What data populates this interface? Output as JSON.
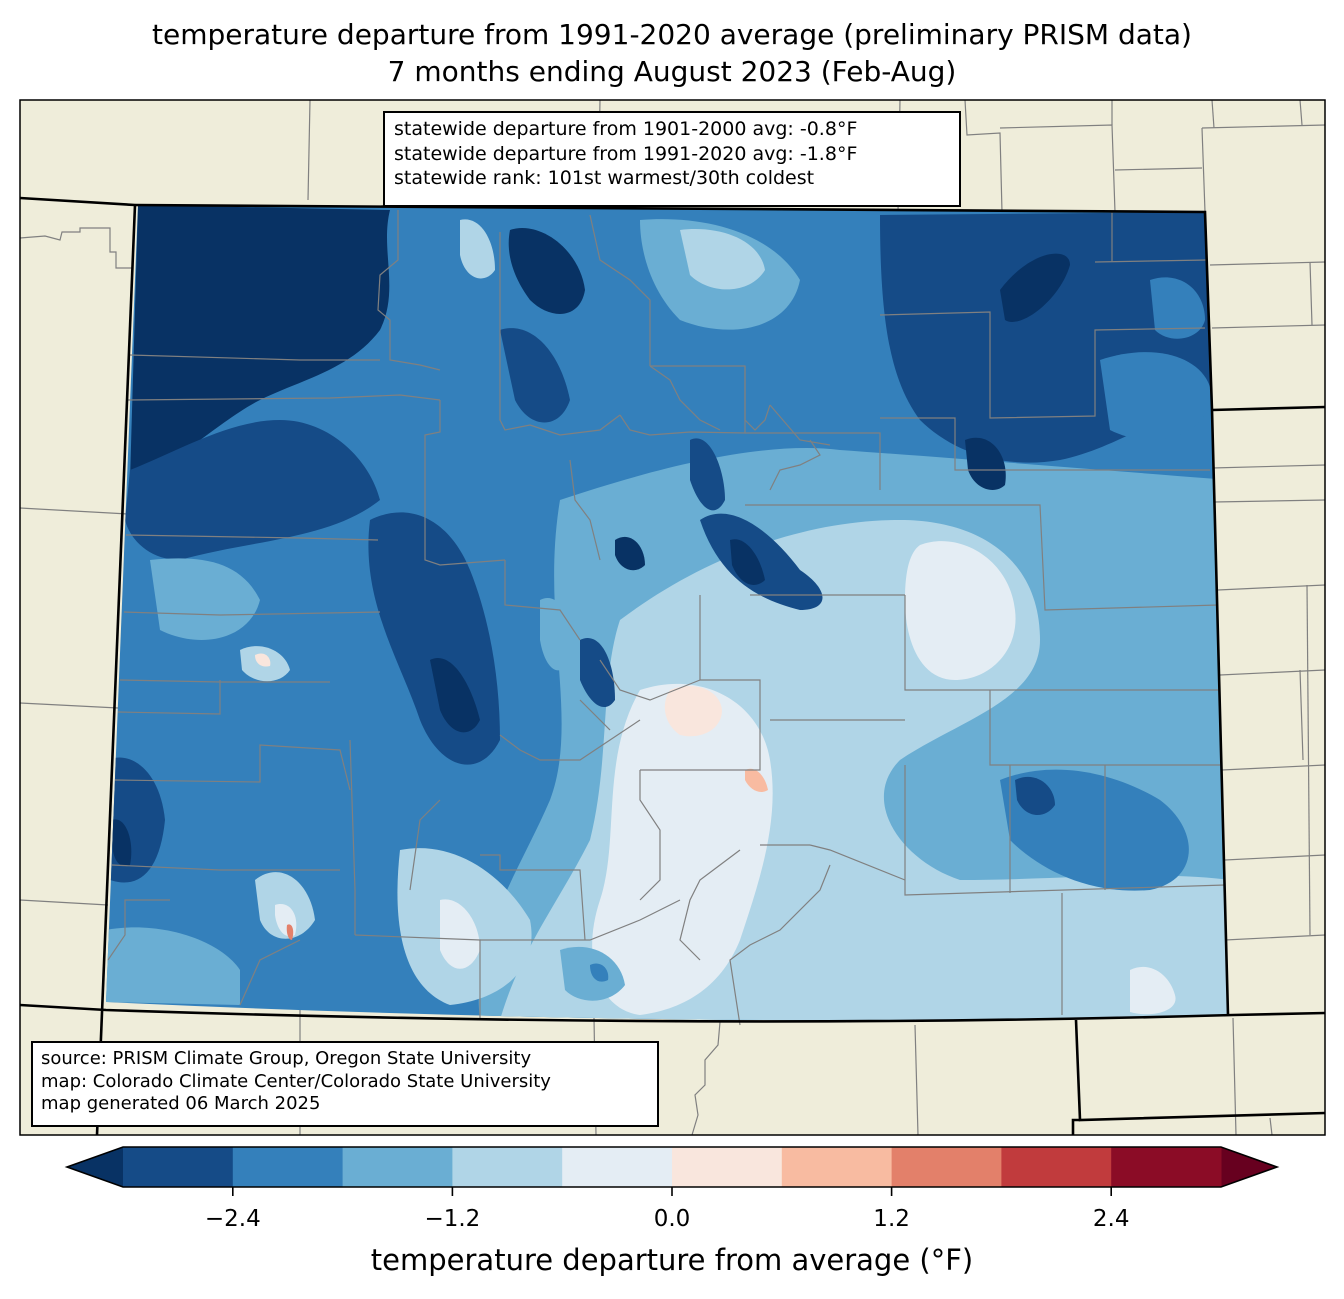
{
  "title": {
    "line1": "temperature departure from 1991-2020 average (preliminary PRISM data)",
    "line2": "7 months ending August 2023 (Feb-Aug)"
  },
  "stats": {
    "line1": "statewide departure from 1901-2000 avg: -0.8°F",
    "line2": "statewide departure from 1991-2020 avg: -1.8°F",
    "line3": "statewide rank: 101st warmest/30th coldest"
  },
  "credits": {
    "line1": "source: PRISM Climate Group, Oregon State University",
    "line2": "map: Colorado Climate Center/Colorado State University",
    "line3": "map generated 06 March 2025"
  },
  "colors": {
    "background_land": "#efedda",
    "county_line": "#808080",
    "state_line": "#000000"
  },
  "chart_data": {
    "type": "heatmap",
    "title": "temperature departure from 1991-2020 average (preliminary PRISM data) — 7 months ending August 2023 (Feb-Aug)",
    "region": "Colorado",
    "colorbar": {
      "label": "temperature departure from average (°F)",
      "extend": "both",
      "levels": [
        -3.0,
        -2.4,
        -1.8,
        -1.2,
        -0.6,
        0.0,
        0.6,
        1.2,
        1.8,
        2.4,
        3.0
      ],
      "colors": [
        "#154b87",
        "#3480bb",
        "#6aaed3",
        "#b0d5e7",
        "#e4edf4",
        "#f9e6dd",
        "#f8bba1",
        "#e3806a",
        "#c13b3d",
        "#8b0c26"
      ],
      "under_color": "#083264",
      "over_color": "#67001f",
      "ticks": [
        -2.4,
        -1.2,
        0.0,
        1.2,
        2.4
      ],
      "tick_labels": [
        "−2.4",
        "−1.2",
        "0.0",
        "1.2",
        "2.4"
      ]
    },
    "statewide_departure_1901_2000_F": -0.8,
    "statewide_departure_1991_2020_F": -1.8,
    "statewide_rank_warmest": 101,
    "statewide_rank_coldest": 30
  }
}
